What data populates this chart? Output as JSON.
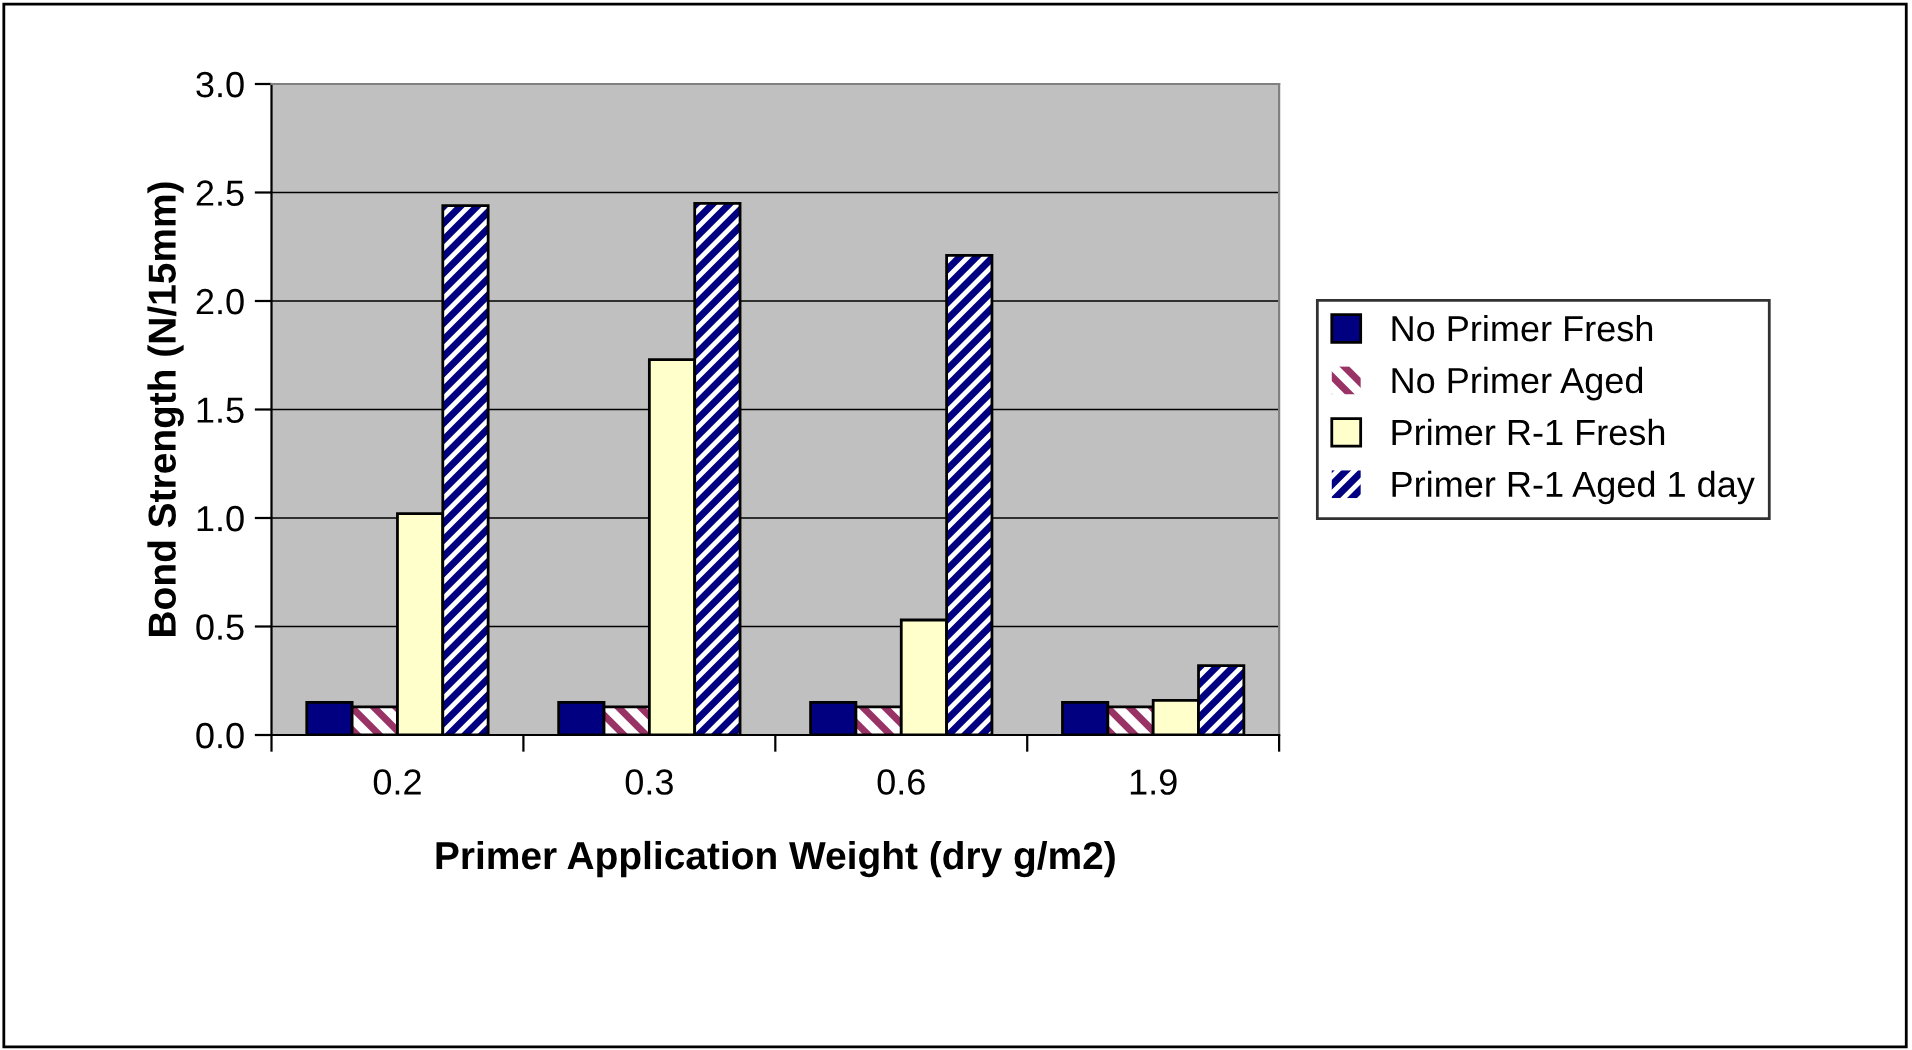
{
  "chart_data": {
    "type": "bar",
    "categories": [
      "0.2",
      "0.3",
      "0.6",
      "1.9"
    ],
    "xlabel": "Primer Application Weight (dry g/m2)",
    "ylabel": "Bond Strength (N/15mm)",
    "series": [
      {
        "name": "No Primer Fresh",
        "color": "#000080",
        "values": [
          0.15,
          0.15,
          0.15,
          0.15
        ]
      },
      {
        "name": "No Primer Aged",
        "color": "#993366",
        "values": [
          0.13,
          0.13,
          0.13,
          0.13
        ]
      },
      {
        "name": "Primer R-1 Fresh",
        "color": "#ffffcc",
        "values": [
          1.02,
          1.73,
          0.53,
          0.16
        ]
      },
      {
        "name": "Primer R-1 Aged 1 day",
        "color": "#000080",
        "values": [
          2.44,
          2.45,
          2.21,
          0.32
        ]
      }
    ],
    "ylim": [
      0,
      3.0
    ],
    "yticks": [
      {
        "value": 0,
        "label": "0.0"
      },
      {
        "value": 0.5,
        "label": "0.5"
      },
      {
        "value": 1.0,
        "label": "1.0"
      },
      {
        "value": 1.5,
        "label": "1.5"
      },
      {
        "value": 2.0,
        "label": "2.0"
      },
      {
        "value": 2.5,
        "label": "2.5"
      },
      {
        "value": 3.0,
        "label": "3.0"
      }
    ],
    "grid": "y",
    "legend": "right"
  }
}
